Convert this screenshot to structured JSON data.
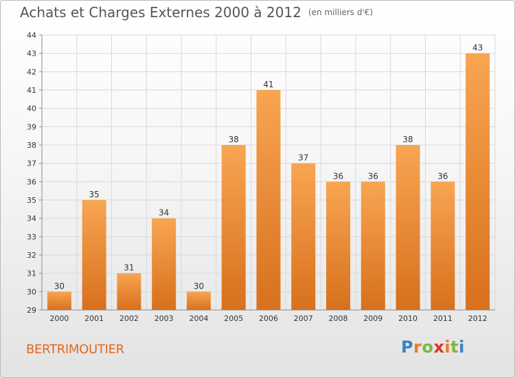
{
  "title": "Achats et Charges Externes 2000 à 2012",
  "unit_label": "(en milliers d'€)",
  "commune": "BERTRIMOUTIER",
  "logo_text": "Proxiti",
  "colors": {
    "bar_light": "#f8a552",
    "bar_dark": "#d8701c",
    "grid": "#d8d8d8",
    "axis_text": "#333333",
    "commune": "#e06a1c"
  },
  "chart_data": {
    "type": "bar",
    "title": "Achats et Charges Externes 2000 à 2012",
    "categories": [
      "2000",
      "2001",
      "2002",
      "2003",
      "2004",
      "2005",
      "2006",
      "2007",
      "2008",
      "2009",
      "2010",
      "2011",
      "2012"
    ],
    "values": [
      30,
      35,
      31,
      34,
      30,
      38,
      41,
      37,
      36,
      36,
      38,
      36,
      43
    ],
    "ylim": [
      29,
      44
    ],
    "yticks": [
      29,
      30,
      31,
      32,
      33,
      34,
      35,
      36,
      37,
      38,
      39,
      40,
      41,
      42,
      43,
      44
    ],
    "xlabel": "",
    "ylabel": "",
    "grid": true
  }
}
